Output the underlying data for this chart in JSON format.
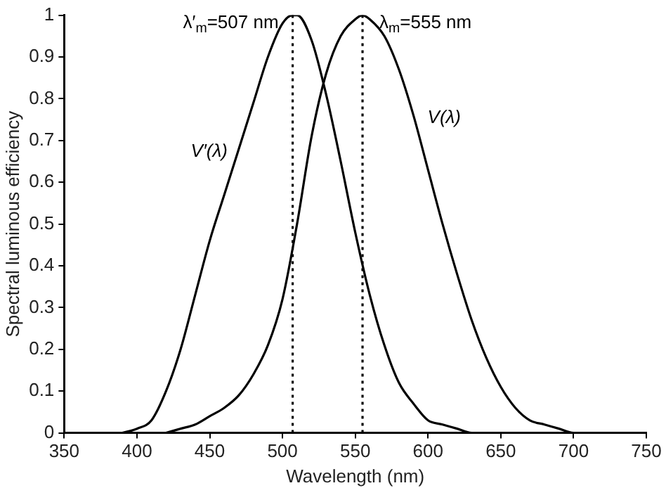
{
  "chart_data": {
    "type": "line",
    "xlabel": "Wavelength (nm)",
    "ylabel": "Spectral luminous efficiency",
    "xlim": [
      350,
      750
    ],
    "xticks": [
      350,
      400,
      450,
      500,
      550,
      600,
      650,
      700,
      750
    ],
    "ylim": [
      0,
      1
    ],
    "yticks": [
      0,
      0.1,
      0.2,
      0.3,
      0.4,
      0.5,
      0.6,
      0.7,
      0.8,
      0.9,
      1
    ],
    "grid": false,
    "legend": false,
    "marker": "none",
    "line_style": "solid",
    "series": [
      {
        "name": "V′(λ)",
        "color": "#000000",
        "x": [
          390,
          400,
          410,
          420,
          430,
          440,
          450,
          460,
          470,
          480,
          490,
          500,
          507,
          510,
          520,
          530,
          540,
          550,
          560,
          570,
          580,
          590,
          600,
          610,
          620,
          630,
          640,
          650,
          660
        ],
        "values": [
          0.0,
          0.01,
          0.03,
          0.1,
          0.2,
          0.33,
          0.46,
          0.57,
          0.68,
          0.79,
          0.9,
          0.98,
          1.0,
          1.0,
          0.94,
          0.81,
          0.65,
          0.48,
          0.33,
          0.21,
          0.12,
          0.07,
          0.03,
          0.02,
          0.01,
          0.0,
          0.0,
          0.0,
          0.0
        ]
      },
      {
        "name": "V(λ)",
        "color": "#000000",
        "x": [
          420,
          430,
          440,
          450,
          460,
          470,
          480,
          490,
          500,
          510,
          520,
          530,
          540,
          550,
          555,
          560,
          570,
          580,
          590,
          600,
          610,
          620,
          630,
          640,
          650,
          660,
          670,
          680,
          690,
          700,
          710
        ],
        "values": [
          0.0,
          0.01,
          0.02,
          0.04,
          0.06,
          0.09,
          0.14,
          0.21,
          0.32,
          0.5,
          0.71,
          0.86,
          0.95,
          0.99,
          1.0,
          0.99,
          0.95,
          0.87,
          0.76,
          0.63,
          0.5,
          0.38,
          0.27,
          0.18,
          0.11,
          0.06,
          0.03,
          0.02,
          0.01,
          0.0,
          0.0
        ]
      }
    ],
    "ref_lines": [
      {
        "axis": "x",
        "value": 507,
        "label": "λ′$_{m}$=507 nm",
        "line_style": "dotted",
        "color": "#000000"
      },
      {
        "axis": "x",
        "value": 555,
        "label": "λ$_{m}$=555 nm",
        "line_style": "dotted",
        "color": "#000000"
      }
    ]
  }
}
